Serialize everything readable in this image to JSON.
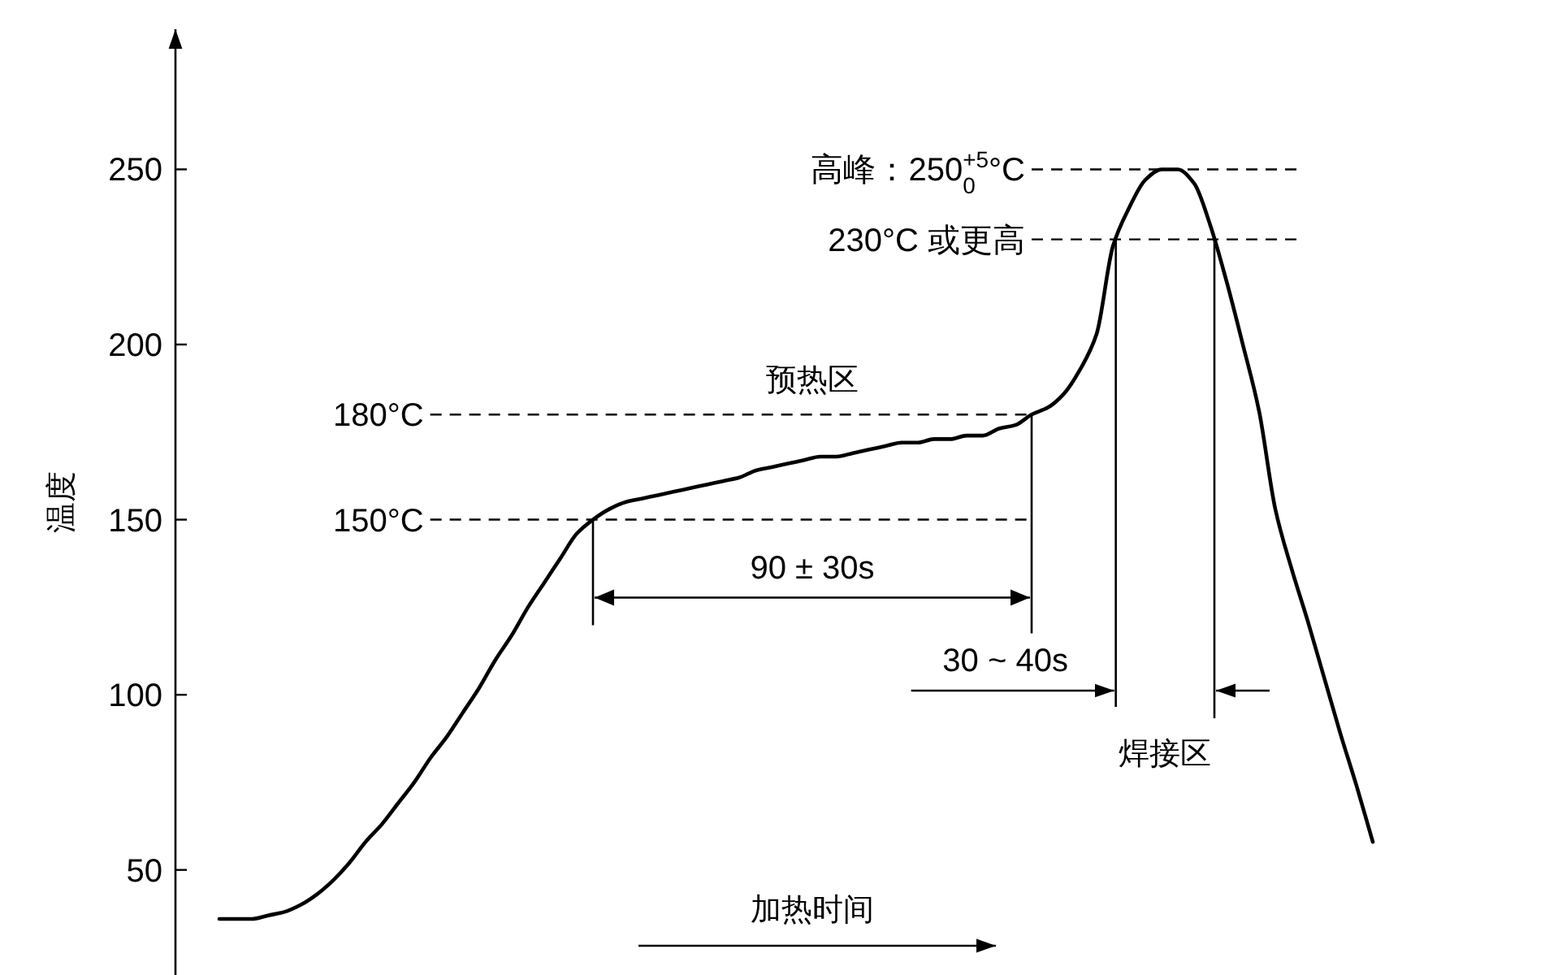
{
  "chart_data": {
    "type": "line",
    "xlabel": "加热时间",
    "ylabel": "温度",
    "categories": [
      null,
      null,
      null,
      null,
      null,
      null,
      null,
      null,
      null,
      null,
      null,
      null,
      null,
      null,
      null,
      null,
      null,
      null,
      null,
      null,
      null,
      null,
      null,
      null,
      null,
      null,
      null,
      null,
      null,
      null,
      null,
      null,
      null,
      null,
      null,
      null,
      null,
      null,
      null,
      null,
      null,
      null,
      null,
      null,
      null,
      null,
      null,
      null,
      null,
      null,
      null,
      null,
      null,
      null,
      null,
      null,
      null,
      null,
      null,
      null,
      null,
      null,
      null,
      null,
      null,
      null,
      null,
      null,
      null,
      null,
      null,
      null
    ],
    "series": [
      {
        "color": "#000000",
        "values": [
          36,
          36,
          36,
          37,
          38,
          40,
          43,
          47,
          52,
          58,
          63,
          69,
          75,
          82,
          88,
          95,
          102,
          110,
          117,
          125,
          132,
          139,
          146,
          150,
          153,
          155,
          156,
          157,
          158,
          159,
          160,
          161,
          162,
          164,
          165,
          166,
          167,
          168,
          168,
          169,
          170,
          171,
          172,
          172,
          173,
          173,
          174,
          174,
          176,
          177,
          180,
          182,
          186,
          193,
          203,
          228,
          239,
          247,
          250,
          250,
          246,
          234,
          218,
          200,
          181,
          153,
          136,
          121,
          105,
          89,
          74,
          58
        ]
      }
    ],
    "ylim": [
      20,
      290
    ],
    "yticks": [
      50,
      100,
      150,
      200,
      250
    ],
    "marker": "none",
    "line_style": "solid",
    "ref_lines": [
      {
        "axis": "y",
        "value": 250,
        "label": "高峰：250$^{+5}$$_{0}$°C",
        "color": "#000000",
        "line_style": "dashed"
      },
      {
        "axis": "y",
        "value": 230,
        "label": "230°C 或更高",
        "color": "#000000",
        "line_style": "dashed"
      },
      {
        "axis": "y",
        "value": 180,
        "label": "180°C",
        "color": "#000000",
        "line_style": "dashed"
      },
      {
        "axis": "y",
        "value": 150,
        "label": "150°C",
        "color": "#000000",
        "line_style": "dashed"
      }
    ],
    "annotations": [
      "90 ± 30s",
      "30 ~ 40s",
      "预热区",
      "焊接区"
    ]
  }
}
